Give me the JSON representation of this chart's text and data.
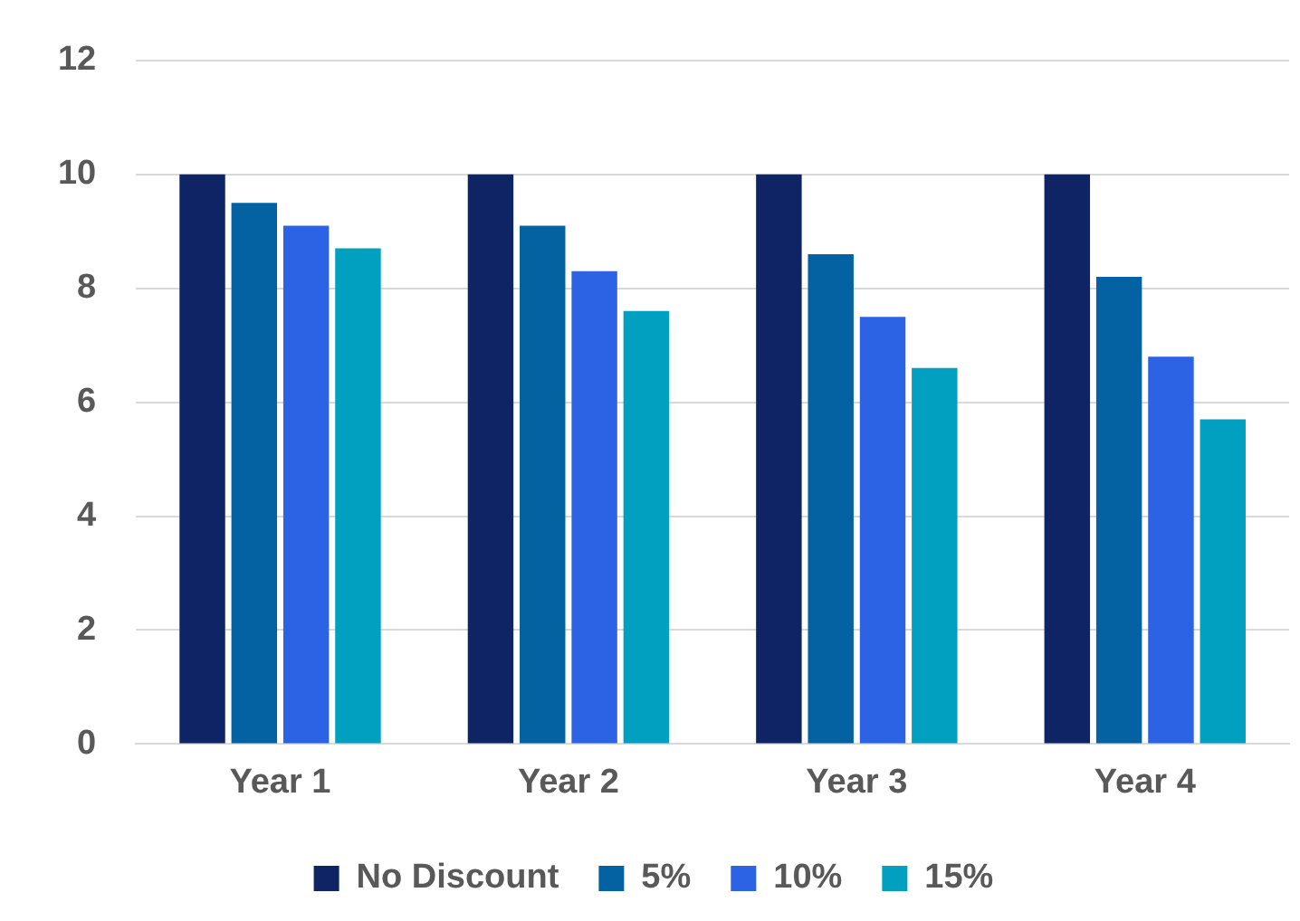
{
  "chart_data": {
    "type": "bar",
    "categories": [
      "Year 1",
      "Year 2",
      "Year 3",
      "Year 4"
    ],
    "series": [
      {
        "name": "No Discount",
        "color": "#0e2465",
        "values": [
          10,
          10,
          10,
          10
        ]
      },
      {
        "name": "5%",
        "color": "#0461a2",
        "values": [
          9.5,
          9.1,
          8.6,
          8.2
        ]
      },
      {
        "name": "10%",
        "color": "#2c62e4",
        "values": [
          9.1,
          8.3,
          7.5,
          6.8
        ]
      },
      {
        "name": "15%",
        "color": "#02a0c0",
        "values": [
          8.7,
          7.6,
          6.6,
          5.7
        ]
      }
    ],
    "ylim": [
      0,
      12
    ],
    "yticks": [
      0,
      2,
      4,
      6,
      8,
      10,
      12
    ],
    "grid": "y",
    "legend": "bottom"
  }
}
